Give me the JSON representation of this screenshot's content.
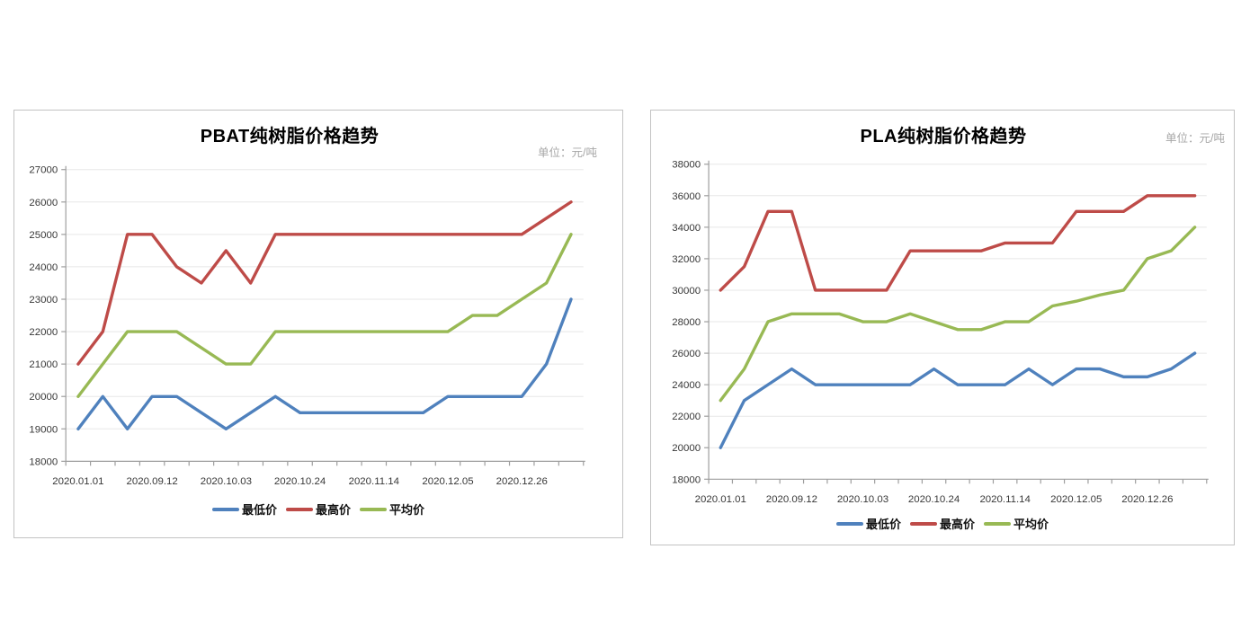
{
  "page": {
    "background": "#ffffff"
  },
  "colors": {
    "min": "#4F81BD",
    "max": "#BE4B48",
    "avg": "#98B954",
    "grid": "#e7e7e7",
    "axis": "#9e9e9e",
    "title": "#000000",
    "unit_text": "#a6a6a6"
  },
  "chart_data": [
    {
      "type": "line",
      "title": "PBAT纯树脂价格趋势",
      "unit": "单位：元/吨",
      "ylim": [
        18000,
        27000
      ],
      "y_tick_step": 1000,
      "y_tick_labels": [
        "27000",
        "26000",
        "25000",
        "24000",
        "23000",
        "22000",
        "21000",
        "20000",
        "19000",
        "18000"
      ],
      "n_points": 21,
      "x_tick_labels": [
        "2020.01.01",
        "2020.09.12",
        "2020.10.03",
        "2020.10.24",
        "2020.11.14",
        "2020.12.05",
        "2020.12.26"
      ],
      "x_tick_indices": [
        0,
        3,
        6,
        9,
        12,
        15,
        18
      ],
      "grid": "horizontal",
      "legend_position": "bottom",
      "series": [
        {
          "key": "min",
          "name": "最低价",
          "color": "#4F81BD",
          "values": [
            19000,
            20000,
            19000,
            20000,
            20000,
            19500,
            19000,
            19500,
            20000,
            19500,
            19500,
            19500,
            19500,
            19500,
            19500,
            20000,
            20000,
            20000,
            20000,
            21000,
            23000
          ]
        },
        {
          "key": "max",
          "name": "最高价",
          "color": "#BE4B48",
          "values": [
            21000,
            22000,
            25000,
            25000,
            24000,
            23500,
            24500,
            23500,
            25000,
            25000,
            25000,
            25000,
            25000,
            25000,
            25000,
            25000,
            25000,
            25000,
            25000,
            25500,
            26000
          ]
        },
        {
          "key": "avg",
          "name": "平均价",
          "color": "#98B954",
          "values": [
            20000,
            21000,
            22000,
            22000,
            22000,
            21500,
            21000,
            21000,
            22000,
            22000,
            22000,
            22000,
            22000,
            22000,
            22000,
            22000,
            22500,
            22500,
            23000,
            23500,
            25000
          ]
        }
      ]
    },
    {
      "type": "line",
      "title": "PLA纯树脂价格趋势",
      "unit": "单位：元/吨",
      "ylim": [
        18000,
        38000
      ],
      "y_tick_step": 2000,
      "y_tick_labels": [
        "38000",
        "36000",
        "34000",
        "32000",
        "30000",
        "28000",
        "26000",
        "24000",
        "22000",
        "20000",
        "18000"
      ],
      "n_points": 21,
      "x_tick_labels": [
        "2020.01.01",
        "2020.09.12",
        "2020.10.03",
        "2020.10.24",
        "2020.11.14",
        "2020.12.05",
        "2020.12.26"
      ],
      "x_tick_indices": [
        0,
        3,
        6,
        9,
        12,
        15,
        18
      ],
      "grid": "horizontal",
      "legend_position": "bottom",
      "series": [
        {
          "key": "min",
          "name": "最低价",
          "color": "#4F81BD",
          "values": [
            20000,
            23000,
            24000,
            25000,
            24000,
            24000,
            24000,
            24000,
            24000,
            25000,
            24000,
            24000,
            24000,
            25000,
            24000,
            25000,
            25000,
            24500,
            24500,
            25000,
            26000
          ]
        },
        {
          "key": "max",
          "name": "最高价",
          "color": "#BE4B48",
          "values": [
            30000,
            31500,
            35000,
            35000,
            30000,
            30000,
            30000,
            30000,
            32500,
            32500,
            32500,
            32500,
            33000,
            33000,
            33000,
            35000,
            35000,
            35000,
            36000,
            36000,
            36000
          ]
        },
        {
          "key": "avg",
          "name": "平均价",
          "color": "#98B954",
          "values": [
            23000,
            25000,
            28000,
            28500,
            28500,
            28500,
            28000,
            28000,
            28500,
            28000,
            27500,
            27500,
            28000,
            28000,
            29000,
            29300,
            29700,
            30000,
            32000,
            32500,
            34000
          ]
        }
      ]
    }
  ]
}
